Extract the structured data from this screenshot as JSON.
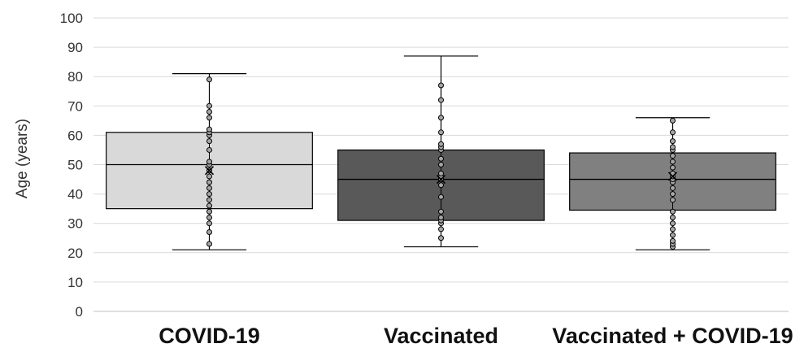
{
  "chart_data": {
    "type": "box",
    "ylabel": "Age (years)",
    "xlabel": "",
    "ylim": [
      0,
      100
    ],
    "yticks": [
      0,
      10,
      20,
      30,
      40,
      50,
      60,
      70,
      80,
      90,
      100
    ],
    "grid": true,
    "categories": [
      "COVID-19",
      "Vaccinated",
      "Vaccinated + COVID-19"
    ],
    "series": [
      {
        "category": "COVID-19",
        "min": 21,
        "q1": 35,
        "median": 50,
        "q3": 61,
        "max": 81,
        "mean": 48,
        "points": [
          23,
          27,
          30,
          32,
          34,
          36,
          38,
          40,
          42,
          44,
          46,
          48,
          50,
          51,
          55,
          58,
          60,
          61,
          62,
          66,
          68,
          70,
          79
        ],
        "color": "#d9d9d9"
      },
      {
        "category": "Vaccinated",
        "min": 22,
        "q1": 31,
        "median": 45,
        "q3": 55,
        "max": 87,
        "mean": 45,
        "points": [
          25,
          28,
          30,
          31,
          32,
          34,
          39,
          43,
          45,
          46,
          47,
          50,
          52,
          55,
          56,
          57,
          61,
          66,
          72,
          77
        ],
        "color": "#595959"
      },
      {
        "category": "Vaccinated + COVID-19",
        "min": 21,
        "q1": 34.5,
        "median": 45,
        "q3": 54,
        "max": 66,
        "mean": 46,
        "points": [
          22,
          23,
          24,
          26,
          28,
          30,
          32,
          34,
          38,
          40,
          42,
          44,
          45,
          46,
          47,
          49,
          51,
          53,
          55,
          56,
          58,
          61,
          65
        ],
        "color": "#808080"
      }
    ]
  }
}
